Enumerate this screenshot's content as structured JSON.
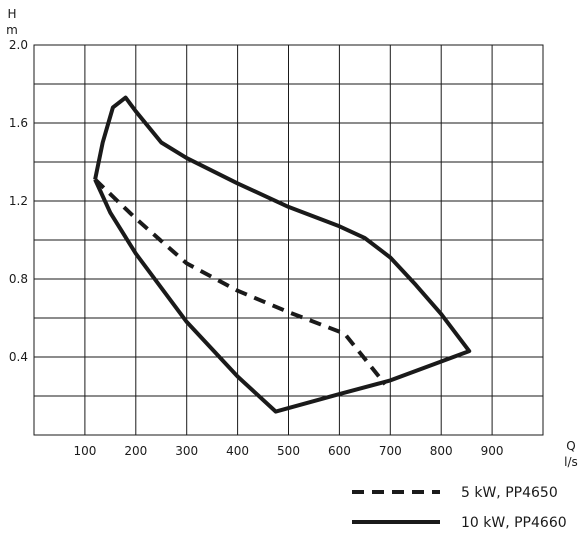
{
  "chart_data": {
    "type": "line",
    "ylabel": "H",
    "yunit": "m",
    "xlabel": "Q",
    "xunit": "l/s",
    "xlim": [
      0,
      1000
    ],
    "ylim": [
      0,
      2.0
    ],
    "xticks": [
      100,
      200,
      300,
      400,
      500,
      600,
      700,
      800,
      900
    ],
    "yticks": [
      "0.4",
      "0.8",
      "1.2",
      "1.6",
      "2.0"
    ],
    "ytick_values": [
      0.4,
      0.8,
      1.2,
      1.6,
      2.0
    ],
    "grid": true,
    "legend_position": "bottom-right",
    "series": [
      {
        "name": "5 kW, PP4650",
        "style": "dashed",
        "color": "#1a1a1a",
        "x": [
          120,
          200,
          300,
          400,
          500,
          610,
          650,
          690
        ],
        "y": [
          1.31,
          1.11,
          0.88,
          0.74,
          0.63,
          0.52,
          0.39,
          0.26
        ]
      },
      {
        "name": "10 kW, PP4660",
        "style": "solid",
        "color": "#1a1a1a",
        "x": [
          120,
          135,
          155,
          180,
          200,
          250,
          300,
          400,
          500,
          600,
          650,
          700,
          750,
          800,
          855,
          700,
          600,
          475,
          400,
          300,
          200,
          150,
          120
        ],
        "y": [
          1.31,
          1.5,
          1.68,
          1.73,
          1.66,
          1.5,
          1.42,
          1.29,
          1.17,
          1.07,
          1.01,
          0.91,
          0.77,
          0.62,
          0.43,
          0.28,
          0.21,
          0.12,
          0.3,
          0.58,
          0.93,
          1.14,
          1.31
        ]
      }
    ]
  }
}
